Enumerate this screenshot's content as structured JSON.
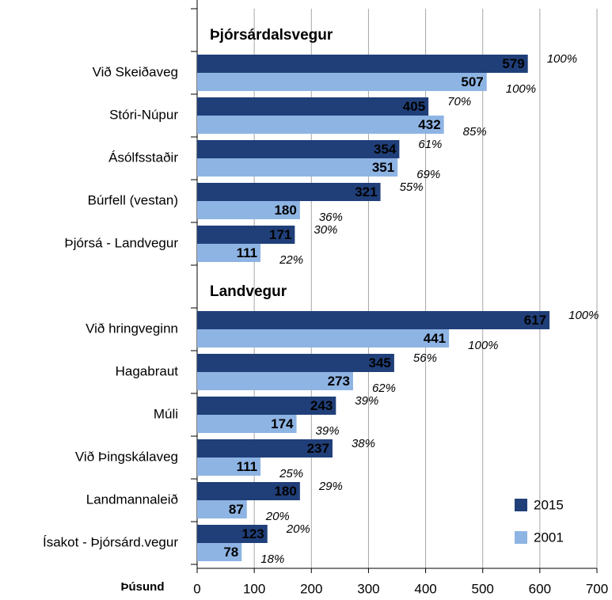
{
  "chart_data": {
    "type": "bar",
    "orientation": "horizontal",
    "categories": [
      null,
      "Við Skeiðaveg",
      "Stóri-Núpur",
      "Ásólfsstaðir",
      "Búrfell (vestan)",
      "Þjórsá - Landvegur",
      null,
      "Við hringveginn",
      "Hagabraut",
      "Múli",
      "Við Þingskálaveg",
      "Landmannaleið",
      "Ísakot - Þjórsárd.vegur"
    ],
    "sections": [
      "Þjórsárdalsvegur",
      "Landvegur"
    ],
    "series": [
      {
        "name": "2015",
        "color": "#203f79",
        "values": [
          null,
          579,
          405,
          354,
          321,
          171,
          null,
          617,
          345,
          243,
          237,
          180,
          123
        ],
        "share_labels": [
          null,
          "100%",
          "70%",
          "61%",
          "55%",
          "30%",
          null,
          "100%",
          "56%",
          "39%",
          "38%",
          "29%",
          "20%"
        ]
      },
      {
        "name": "2001",
        "color": "#8eb4e3",
        "values": [
          null,
          507,
          432,
          351,
          180,
          111,
          null,
          441,
          273,
          174,
          111,
          87,
          78
        ],
        "share_labels": [
          null,
          "100%",
          "85%",
          "69%",
          "36%",
          "22%",
          null,
          "100%",
          "62%",
          "39%",
          "25%",
          "20%",
          "18%"
        ]
      }
    ],
    "xlabel": "Þúsund",
    "xlim": [
      0,
      700
    ],
    "xticks": [
      0,
      100,
      200,
      300,
      400,
      500,
      600,
      700
    ],
    "grid": true,
    "legend": "lower right"
  }
}
